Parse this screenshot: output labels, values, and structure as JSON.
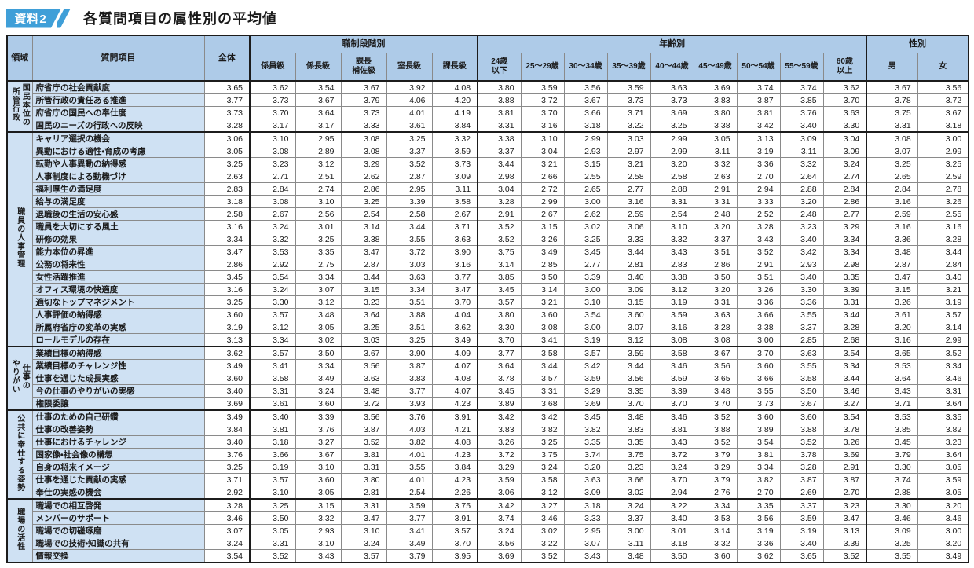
{
  "page_title": {
    "badge": "資料2",
    "title": "各質問項目の属性別の平均値"
  },
  "colors": {
    "badge": "#3f9fd8",
    "header_bg": "#aecbe8",
    "label_bg": "#cfe1f3",
    "grid_line": "#8a8a8a",
    "dark_border": "#1c1c1c"
  },
  "table": {
    "corner_headers": {
      "area": "領域",
      "question": "質問項目",
      "overall": "全体"
    },
    "column_groups": [
      {
        "label": "職制段階別",
        "columns": [
          "係員級",
          "係長級",
          "課長\n補佐級",
          "室長級",
          "課長級"
        ]
      },
      {
        "label": "年齢別",
        "columns": [
          "24歳\n以下",
          "25〜29歳",
          "30〜34歳",
          "35〜39歳",
          "40〜44歳",
          "45〜49歳",
          "50〜54歳",
          "55〜59歳",
          "60歳\n以上"
        ]
      },
      {
        "label": "性別",
        "columns": [
          "男",
          "女"
        ]
      }
    ],
    "sections": [
      {
        "area": "国民本位の\n所管行政",
        "rows": [
          {
            "label": "府省庁の社会貢献度",
            "values": [
              3.65,
              3.62,
              3.54,
              3.67,
              3.92,
              4.08,
              3.8,
              3.59,
              3.56,
              3.59,
              3.63,
              3.69,
              3.74,
              3.74,
              3.62,
              3.67,
              3.56
            ]
          },
          {
            "label": "所管行政の責任ある推進",
            "values": [
              3.77,
              3.73,
              3.67,
              3.79,
              4.06,
              4.2,
              3.88,
              3.72,
              3.67,
              3.73,
              3.73,
              3.83,
              3.87,
              3.85,
              3.7,
              3.78,
              3.72
            ]
          },
          {
            "label": "府省庁の国民への奉仕度",
            "values": [
              3.73,
              3.7,
              3.64,
              3.73,
              4.01,
              4.19,
              3.81,
              3.7,
              3.66,
              3.71,
              3.69,
              3.8,
              3.81,
              3.76,
              3.63,
              3.75,
              3.67
            ]
          },
          {
            "label": "国民のニーズの行政への反映",
            "values": [
              3.28,
              3.17,
              3.17,
              3.33,
              3.61,
              3.84,
              3.31,
              3.16,
              3.18,
              3.22,
              3.25,
              3.38,
              3.42,
              3.4,
              3.3,
              3.31,
              3.18
            ]
          }
        ]
      },
      {
        "area": "職員の人事管理",
        "rows": [
          {
            "label": "キャリア選択の機会",
            "values": [
              3.06,
              3.1,
              2.95,
              3.08,
              3.25,
              3.32,
              3.38,
              3.1,
              2.99,
              3.03,
              2.99,
              3.05,
              3.13,
              3.09,
              3.04,
              3.08,
              3.0
            ]
          },
          {
            "label": "異動における適性・育成の考慮",
            "values": [
              3.05,
              3.08,
              2.89,
              3.08,
              3.37,
              3.59,
              3.37,
              3.04,
              2.93,
              2.97,
              2.99,
              3.11,
              3.19,
              3.11,
              3.09,
              3.07,
              2.99
            ]
          },
          {
            "label": "転勤や人事異動の納得感",
            "values": [
              3.25,
              3.23,
              3.12,
              3.29,
              3.52,
              3.73,
              3.44,
              3.21,
              3.15,
              3.21,
              3.2,
              3.32,
              3.36,
              3.32,
              3.24,
              3.25,
              3.25
            ]
          },
          {
            "label": "人事制度による動機づけ",
            "values": [
              2.63,
              2.71,
              2.51,
              2.62,
              2.87,
              3.09,
              2.98,
              2.66,
              2.55,
              2.58,
              2.58,
              2.63,
              2.7,
              2.64,
              2.74,
              2.65,
              2.59
            ]
          },
          {
            "label": "福利厚生の満足度",
            "values": [
              2.83,
              2.84,
              2.74,
              2.86,
              2.95,
              3.11,
              3.04,
              2.72,
              2.65,
              2.77,
              2.88,
              2.91,
              2.94,
              2.88,
              2.84,
              2.84,
              2.78
            ]
          },
          {
            "label": "給与の満足度",
            "values": [
              3.18,
              3.08,
              3.1,
              3.25,
              3.39,
              3.58,
              3.28,
              2.99,
              3.0,
              3.16,
              3.31,
              3.31,
              3.33,
              3.2,
              2.86,
              3.16,
              3.26
            ]
          },
          {
            "label": "退職後の生活の安心感",
            "values": [
              2.58,
              2.67,
              2.56,
              2.54,
              2.58,
              2.67,
              2.91,
              2.67,
              2.62,
              2.59,
              2.54,
              2.48,
              2.52,
              2.48,
              2.77,
              2.59,
              2.55
            ]
          },
          {
            "label": "職員を大切にする風土",
            "values": [
              3.16,
              3.24,
              3.01,
              3.14,
              3.44,
              3.71,
              3.52,
              3.15,
              3.02,
              3.06,
              3.1,
              3.2,
              3.28,
              3.23,
              3.29,
              3.16,
              3.16
            ]
          },
          {
            "label": "研修の効果",
            "values": [
              3.34,
              3.32,
              3.25,
              3.38,
              3.55,
              3.63,
              3.52,
              3.26,
              3.25,
              3.33,
              3.32,
              3.37,
              3.43,
              3.4,
              3.34,
              3.36,
              3.28
            ]
          },
          {
            "label": "能力本位の昇進",
            "values": [
              3.47,
              3.53,
              3.35,
              3.47,
              3.72,
              3.9,
              3.75,
              3.49,
              3.45,
              3.44,
              3.43,
              3.51,
              3.52,
              3.42,
              3.34,
              3.48,
              3.44
            ]
          },
          {
            "label": "公務の将来性",
            "values": [
              2.86,
              2.92,
              2.75,
              2.87,
              3.03,
              3.16,
              3.14,
              2.85,
              2.77,
              2.81,
              2.83,
              2.86,
              2.91,
              2.93,
              2.98,
              2.87,
              2.84
            ]
          },
          {
            "label": "女性活躍推進",
            "values": [
              3.45,
              3.54,
              3.34,
              3.44,
              3.63,
              3.77,
              3.85,
              3.5,
              3.39,
              3.4,
              3.38,
              3.5,
              3.51,
              3.4,
              3.35,
              3.47,
              3.4
            ]
          },
          {
            "label": "オフィス環境の快適度",
            "values": [
              3.16,
              3.24,
              3.07,
              3.15,
              3.34,
              3.47,
              3.45,
              3.14,
              3.0,
              3.09,
              3.12,
              3.2,
              3.26,
              3.3,
              3.39,
              3.15,
              3.21
            ]
          },
          {
            "label": "適切なトップマネジメント",
            "values": [
              3.25,
              3.3,
              3.12,
              3.23,
              3.51,
              3.7,
              3.57,
              3.21,
              3.1,
              3.15,
              3.19,
              3.31,
              3.36,
              3.36,
              3.31,
              3.26,
              3.19
            ]
          },
          {
            "label": "人事評価の納得感",
            "values": [
              3.6,
              3.57,
              3.48,
              3.64,
              3.88,
              4.04,
              3.8,
              3.6,
              3.54,
              3.6,
              3.59,
              3.63,
              3.66,
              3.55,
              3.44,
              3.61,
              3.57
            ]
          },
          {
            "label": "所属府省庁の変革の実感",
            "values": [
              3.19,
              3.12,
              3.05,
              3.25,
              3.51,
              3.62,
              3.3,
              3.08,
              3.0,
              3.07,
              3.16,
              3.28,
              3.38,
              3.37,
              3.28,
              3.2,
              3.14
            ]
          },
          {
            "label": "ロールモデルの存在",
            "values": [
              3.13,
              3.34,
              3.02,
              3.03,
              3.25,
              3.49,
              3.7,
              3.41,
              3.19,
              3.12,
              3.08,
              3.08,
              3.0,
              2.85,
              2.68,
              3.16,
              2.99
            ]
          }
        ]
      },
      {
        "area": "仕事の\nやりがい",
        "rows": [
          {
            "label": "業績目標の納得感",
            "values": [
              3.62,
              3.57,
              3.5,
              3.67,
              3.9,
              4.09,
              3.77,
              3.58,
              3.57,
              3.59,
              3.58,
              3.67,
              3.7,
              3.63,
              3.54,
              3.65,
              3.52
            ]
          },
          {
            "label": "業績目標のチャレンジ性",
            "values": [
              3.49,
              3.41,
              3.34,
              3.56,
              3.87,
              4.07,
              3.64,
              3.44,
              3.42,
              3.44,
              3.46,
              3.56,
              3.6,
              3.55,
              3.34,
              3.53,
              3.34
            ]
          },
          {
            "label": "仕事を通じた成長実感",
            "values": [
              3.6,
              3.58,
              3.49,
              3.63,
              3.83,
              4.08,
              3.78,
              3.57,
              3.59,
              3.56,
              3.59,
              3.65,
              3.66,
              3.58,
              3.44,
              3.64,
              3.46
            ]
          },
          {
            "label": "今の仕事のやりがいの実感",
            "values": [
              3.4,
              3.31,
              3.24,
              3.48,
              3.77,
              4.07,
              3.45,
              3.31,
              3.29,
              3.35,
              3.39,
              3.48,
              3.55,
              3.5,
              3.46,
              3.43,
              3.31
            ]
          },
          {
            "label": "権限委譲",
            "values": [
              3.69,
              3.61,
              3.6,
              3.72,
              3.93,
              4.23,
              3.89,
              3.68,
              3.69,
              3.7,
              3.7,
              3.7,
              3.73,
              3.67,
              3.27,
              3.71,
              3.64
            ]
          }
        ]
      },
      {
        "area": "公共に奉仕する姿勢",
        "rows": [
          {
            "label": "仕事のための自己研鑽",
            "values": [
              3.49,
              3.4,
              3.39,
              3.56,
              3.76,
              3.91,
              3.42,
              3.42,
              3.45,
              3.48,
              3.46,
              3.52,
              3.6,
              3.6,
              3.54,
              3.53,
              3.35
            ]
          },
          {
            "label": "仕事の改善姿勢",
            "values": [
              3.84,
              3.81,
              3.76,
              3.87,
              4.03,
              4.21,
              3.83,
              3.82,
              3.82,
              3.83,
              3.81,
              3.88,
              3.89,
              3.88,
              3.78,
              3.85,
              3.82
            ]
          },
          {
            "label": "仕事におけるチャレンジ",
            "values": [
              3.4,
              3.18,
              3.27,
              3.52,
              3.82,
              4.08,
              3.26,
              3.25,
              3.35,
              3.35,
              3.43,
              3.52,
              3.54,
              3.52,
              3.26,
              3.45,
              3.23
            ]
          },
          {
            "label": "国家像・社会像の構想",
            "values": [
              3.76,
              3.66,
              3.67,
              3.81,
              4.01,
              4.23,
              3.72,
              3.75,
              3.74,
              3.75,
              3.72,
              3.79,
              3.81,
              3.78,
              3.69,
              3.79,
              3.64
            ]
          },
          {
            "label": "自身の将来イメージ",
            "values": [
              3.25,
              3.19,
              3.1,
              3.31,
              3.55,
              3.84,
              3.29,
              3.24,
              3.2,
              3.23,
              3.24,
              3.29,
              3.34,
              3.28,
              2.91,
              3.3,
              3.05
            ]
          },
          {
            "label": "仕事を通じた貢献の実感",
            "values": [
              3.71,
              3.57,
              3.6,
              3.8,
              4.01,
              4.23,
              3.59,
              3.58,
              3.63,
              3.66,
              3.7,
              3.79,
              3.82,
              3.87,
              3.87,
              3.74,
              3.59
            ]
          },
          {
            "label": "奉仕の実感の機会",
            "values": [
              2.92,
              3.1,
              3.05,
              2.81,
              2.54,
              2.26,
              3.06,
              3.12,
              3.09,
              3.02,
              2.94,
              2.76,
              2.7,
              2.69,
              2.7,
              2.88,
              3.05
            ]
          }
        ]
      },
      {
        "area": "職場の活性",
        "rows": [
          {
            "label": "職場での相互啓発",
            "values": [
              3.28,
              3.25,
              3.15,
              3.31,
              3.59,
              3.75,
              3.42,
              3.27,
              3.18,
              3.24,
              3.22,
              3.34,
              3.35,
              3.37,
              3.23,
              3.3,
              3.2
            ]
          },
          {
            "label": "メンバーのサポート",
            "values": [
              3.46,
              3.5,
              3.32,
              3.47,
              3.77,
              3.91,
              3.74,
              3.46,
              3.33,
              3.37,
              3.4,
              3.53,
              3.56,
              3.59,
              3.47,
              3.46,
              3.46
            ]
          },
          {
            "label": "職場での切磋琢磨",
            "values": [
              3.07,
              3.05,
              2.93,
              3.1,
              3.41,
              3.57,
              3.24,
              3.02,
              2.95,
              3.0,
              3.01,
              3.14,
              3.19,
              3.19,
              3.13,
              3.09,
              3.0
            ]
          },
          {
            "label": "職場での技術・知識の共有",
            "values": [
              3.24,
              3.31,
              3.1,
              3.24,
              3.49,
              3.7,
              3.56,
              3.22,
              3.07,
              3.11,
              3.18,
              3.32,
              3.36,
              3.4,
              3.39,
              3.25,
              3.2
            ]
          },
          {
            "label": "情報交換",
            "values": [
              3.54,
              3.52,
              3.43,
              3.57,
              3.79,
              3.95,
              3.69,
              3.52,
              3.43,
              3.48,
              3.5,
              3.6,
              3.62,
              3.65,
              3.52,
              3.55,
              3.49
            ]
          }
        ]
      }
    ]
  }
}
